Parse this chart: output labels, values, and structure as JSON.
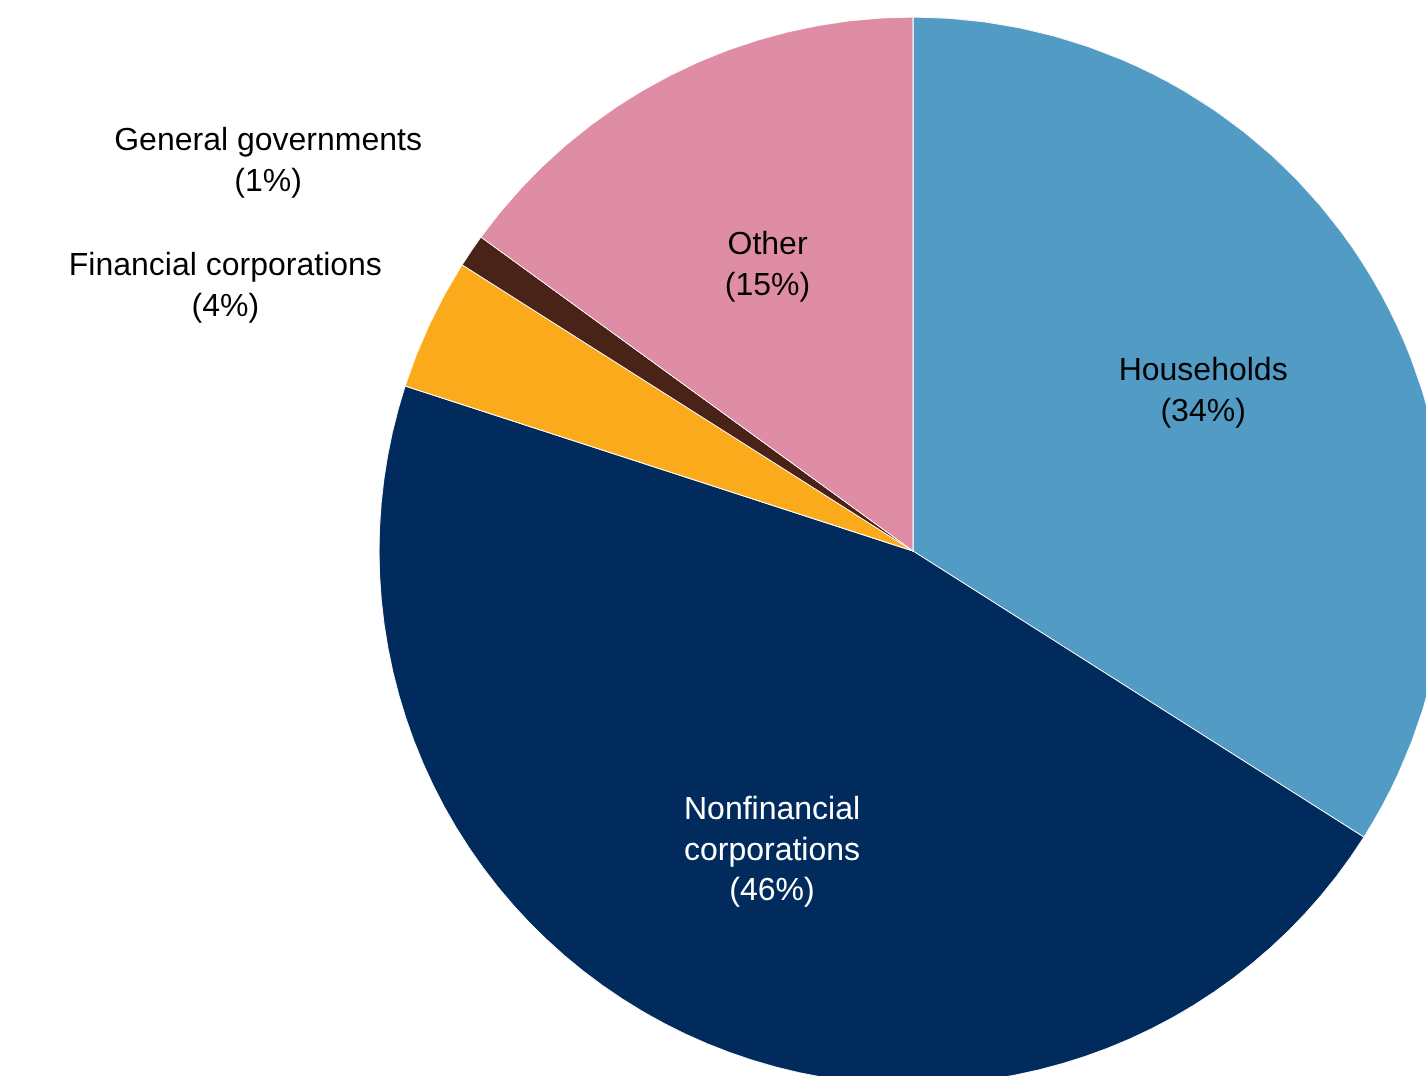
{
  "chart_data": {
    "type": "pie",
    "categories": [
      "Households",
      "Nonfinancial\ncorporations",
      "Financial corporations",
      "General governments",
      "Other"
    ],
    "values": [
      34,
      46,
      4,
      1,
      15
    ],
    "value_labels": [
      "(34%)",
      "(46%)",
      "(4%)",
      "(1%)",
      "(15%)"
    ],
    "colors": [
      "#519bc4",
      "#002b5c",
      "#fbaa1c",
      "#4a2318",
      "#df8ca5"
    ]
  }
}
